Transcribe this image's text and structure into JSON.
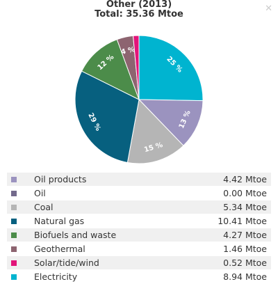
{
  "header": {
    "title": "Other (2013)",
    "total": "Total: 35.36 Mtoe",
    "close_icon": "close-icon"
  },
  "chart_data": {
    "type": "pie",
    "title": "Other (2013)",
    "subtitle": "Total: 35.36 Mtoe",
    "unit": "Mtoe",
    "slices": [
      {
        "name": "Electricity",
        "value": 8.94,
        "label": "25 %",
        "color": "#00b4d0"
      },
      {
        "name": "Oil products",
        "value": 4.42,
        "label": "13 %",
        "color": "#9b93bf"
      },
      {
        "name": "Coal",
        "value": 5.34,
        "label": "15 %",
        "color": "#b5b5b5"
      },
      {
        "name": "Natural gas",
        "value": 10.41,
        "label": "29 %",
        "color": "#07607f"
      },
      {
        "name": "Biofuels and waste",
        "value": 4.27,
        "label": "12 %",
        "color": "#4c8c4a"
      },
      {
        "name": "Geothermal",
        "value": 1.46,
        "label": "4 %",
        "color": "#8d6470"
      },
      {
        "name": "Oil",
        "value": 0.0,
        "label": "",
        "color": "#736a8c"
      },
      {
        "name": "Solar/tide/wind",
        "value": 0.52,
        "label": "",
        "color": "#e2157a"
      }
    ]
  },
  "legend": [
    {
      "label": "Oil products",
      "value": "4.42 Mtoe",
      "color": "#9b93bf"
    },
    {
      "label": "Oil",
      "value": "0.00 Mtoe",
      "color": "#736a8c"
    },
    {
      "label": "Coal",
      "value": "5.34 Mtoe",
      "color": "#b5b5b5"
    },
    {
      "label": "Natural gas",
      "value": "10.41 Mtoe",
      "color": "#07607f"
    },
    {
      "label": "Biofuels and waste",
      "value": "4.27 Mtoe",
      "color": "#4c8c4a"
    },
    {
      "label": "Geothermal",
      "value": "1.46 Mtoe",
      "color": "#8d6470"
    },
    {
      "label": "Solar/tide/wind",
      "value": "0.52 Mtoe",
      "color": "#e2157a"
    },
    {
      "label": "Electricity",
      "value": "8.94 Mtoe",
      "color": "#00b4d0"
    }
  ]
}
